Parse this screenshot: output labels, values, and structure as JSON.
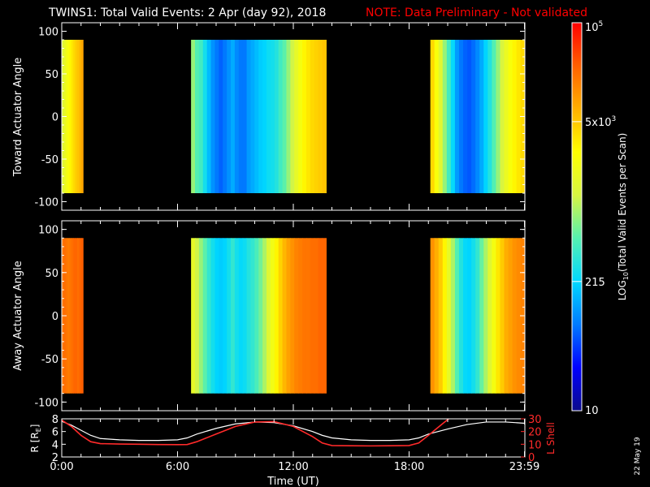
{
  "header": {
    "title": "TWINS1: Total Valid Events:  2 Apr (day  92), 2018",
    "note": "NOTE: Data Preliminary - Not validated"
  },
  "footer": {
    "date_stamp": "22 May 19"
  },
  "colors": {
    "background": "#000000",
    "axis": "#ffffff",
    "note": "#ff0000",
    "l_shell": "#ff2a2a",
    "r_line": "#ffffff",
    "colormap": [
      "#0a0a8c",
      "#0000ff",
      "#007bff",
      "#00d8ff",
      "#55f0b0",
      "#d7f542",
      "#ffff00",
      "#ffb000",
      "#ff6000",
      "#ff0000"
    ]
  },
  "chart_data": [
    {
      "type": "heatmap",
      "name": "toward",
      "xlabel": "",
      "ylabel": "Toward Actuator Angle",
      "xlim": [
        0,
        24
      ],
      "ylim": [
        -110,
        110
      ],
      "y_ticks": [
        "100",
        "50",
        "0",
        "-50",
        "-100"
      ],
      "y_tick_values": [
        100,
        50,
        0,
        -50,
        -100
      ],
      "angle_range": [
        -90,
        90
      ],
      "blocks": [
        {
          "start": 0.0,
          "end": 1.1,
          "profile": [
            0.58,
            0.6,
            0.63,
            0.65,
            0.68,
            0.7,
            0.72,
            0.74,
            0.75,
            0.77,
            0.79
          ]
        },
        {
          "start": 6.7,
          "end": 13.7,
          "profile": [
            0.5,
            0.44,
            0.42,
            0.36,
            0.3,
            0.25,
            0.22,
            0.2,
            0.22,
            0.25,
            0.28,
            0.24,
            0.22,
            0.22,
            0.26,
            0.28,
            0.3,
            0.32,
            0.33,
            0.35,
            0.36,
            0.38,
            0.42,
            0.45,
            0.5,
            0.55,
            0.6,
            0.64,
            0.68,
            0.7,
            0.72,
            0.73,
            0.74,
            0.75
          ]
        },
        {
          "start": 19.1,
          "end": 23.99,
          "profile": [
            0.72,
            0.65,
            0.58,
            0.5,
            0.42,
            0.34,
            0.26,
            0.22,
            0.2,
            0.19,
            0.21,
            0.24,
            0.28,
            0.33,
            0.38,
            0.44,
            0.5,
            0.56,
            0.61,
            0.65,
            0.68,
            0.7,
            0.72
          ]
        }
      ]
    },
    {
      "type": "heatmap",
      "name": "away",
      "xlabel": "",
      "ylabel": "Away Actuator Angle",
      "xlim": [
        0,
        24
      ],
      "ylim": [
        -110,
        110
      ],
      "y_ticks": [
        "100",
        "50",
        "0",
        "-50",
        "-100"
      ],
      "y_tick_values": [
        100,
        50,
        0,
        -50,
        -100
      ],
      "angle_range": [
        -90,
        90
      ],
      "blocks": [
        {
          "start": 0.0,
          "end": 1.1,
          "profile": [
            0.86,
            0.87,
            0.86,
            0.85,
            0.86,
            0.87,
            0.88,
            0.88,
            0.87,
            0.88,
            0.89
          ]
        },
        {
          "start": 6.7,
          "end": 13.7,
          "profile": [
            0.6,
            0.55,
            0.5,
            0.45,
            0.4,
            0.36,
            0.33,
            0.32,
            0.33,
            0.36,
            0.4,
            0.36,
            0.34,
            0.35,
            0.38,
            0.4,
            0.43,
            0.47,
            0.52,
            0.58,
            0.63,
            0.68,
            0.73,
            0.77,
            0.8,
            0.82,
            0.84,
            0.85,
            0.86,
            0.86,
            0.87,
            0.87,
            0.88,
            0.88
          ]
        },
        {
          "start": 19.1,
          "end": 23.99,
          "profile": [
            0.82,
            0.78,
            0.74,
            0.68,
            0.6,
            0.52,
            0.44,
            0.38,
            0.34,
            0.33,
            0.36,
            0.4,
            0.46,
            0.52,
            0.58,
            0.64,
            0.7,
            0.74,
            0.78,
            0.8,
            0.82,
            0.83,
            0.84
          ]
        }
      ]
    },
    {
      "type": "line",
      "name": "orbit",
      "xlabel": "Time (UT)",
      "ylabel": "R [RE]",
      "y2label": "L Shell",
      "x_ticks": [
        "0:00",
        "6:00",
        "12:00",
        "18:00",
        "23:59"
      ],
      "x_tick_values": [
        0,
        6,
        12,
        18,
        23.98
      ],
      "xlim": [
        0,
        24
      ],
      "ylim": [
        2,
        8
      ],
      "y_ticks": [
        "8",
        "6",
        "4",
        "2"
      ],
      "y_tick_values": [
        8,
        6,
        4,
        2
      ],
      "y2lim": [
        0,
        30
      ],
      "y2_ticks": [
        "30",
        "20",
        "10",
        "0"
      ],
      "y2_tick_values": [
        30,
        20,
        10,
        0
      ],
      "series": [
        {
          "axis": "left",
          "color": "#ffffff",
          "x": [
            0,
            0.5,
            1,
            1.5,
            2,
            3,
            4,
            5,
            6,
            6.5,
            7,
            8,
            9,
            10,
            11,
            12,
            13,
            13.5,
            14,
            15,
            16,
            17,
            18,
            18.5,
            19,
            20,
            21,
            22,
            23,
            24
          ],
          "y": [
            7.6,
            7.0,
            6.2,
            5.4,
            4.9,
            4.7,
            4.6,
            4.6,
            4.7,
            5.0,
            5.6,
            6.5,
            7.2,
            7.5,
            7.4,
            6.9,
            6.0,
            5.4,
            5.0,
            4.7,
            4.6,
            4.6,
            4.7,
            5.0,
            5.6,
            6.4,
            7.1,
            7.5,
            7.5,
            7.3
          ]
        },
        {
          "axis": "right",
          "color": "#ff2a2a",
          "x": [
            0,
            0.5,
            1,
            1.5,
            2,
            3,
            4,
            5,
            6,
            6.5,
            7,
            8,
            9,
            10,
            11,
            12,
            13,
            13.5,
            14,
            15,
            16,
            17,
            18,
            18.5,
            19,
            19.8,
            20.3
          ],
          "y": [
            29,
            24,
            17,
            12,
            10.5,
            10.2,
            10,
            9.8,
            9.7,
            9.8,
            12,
            18,
            24,
            27.5,
            27.8,
            24,
            16,
            11,
            9,
            8.8,
            8.7,
            8.8,
            9,
            11,
            17,
            27,
            33
          ]
        }
      ]
    }
  ],
  "colorbar": {
    "label": "LOG10(Total Valid Events per Scan)",
    "label_base": "LOG",
    "label_sub": "10",
    "label_rest": "(Total Valid Events per Scan)",
    "ticks": [
      {
        "base": "10",
        "exp": "5",
        "value": 1.0
      },
      {
        "base": "5x10",
        "exp": "3",
        "value": 0.745
      },
      {
        "base": "215",
        "exp": "",
        "value": 0.333
      },
      {
        "base": "10",
        "exp": "",
        "value": 0.0
      }
    ]
  },
  "axis_labels": {
    "r_base": "R [R",
    "r_sub": "E",
    "r_close": "]"
  }
}
